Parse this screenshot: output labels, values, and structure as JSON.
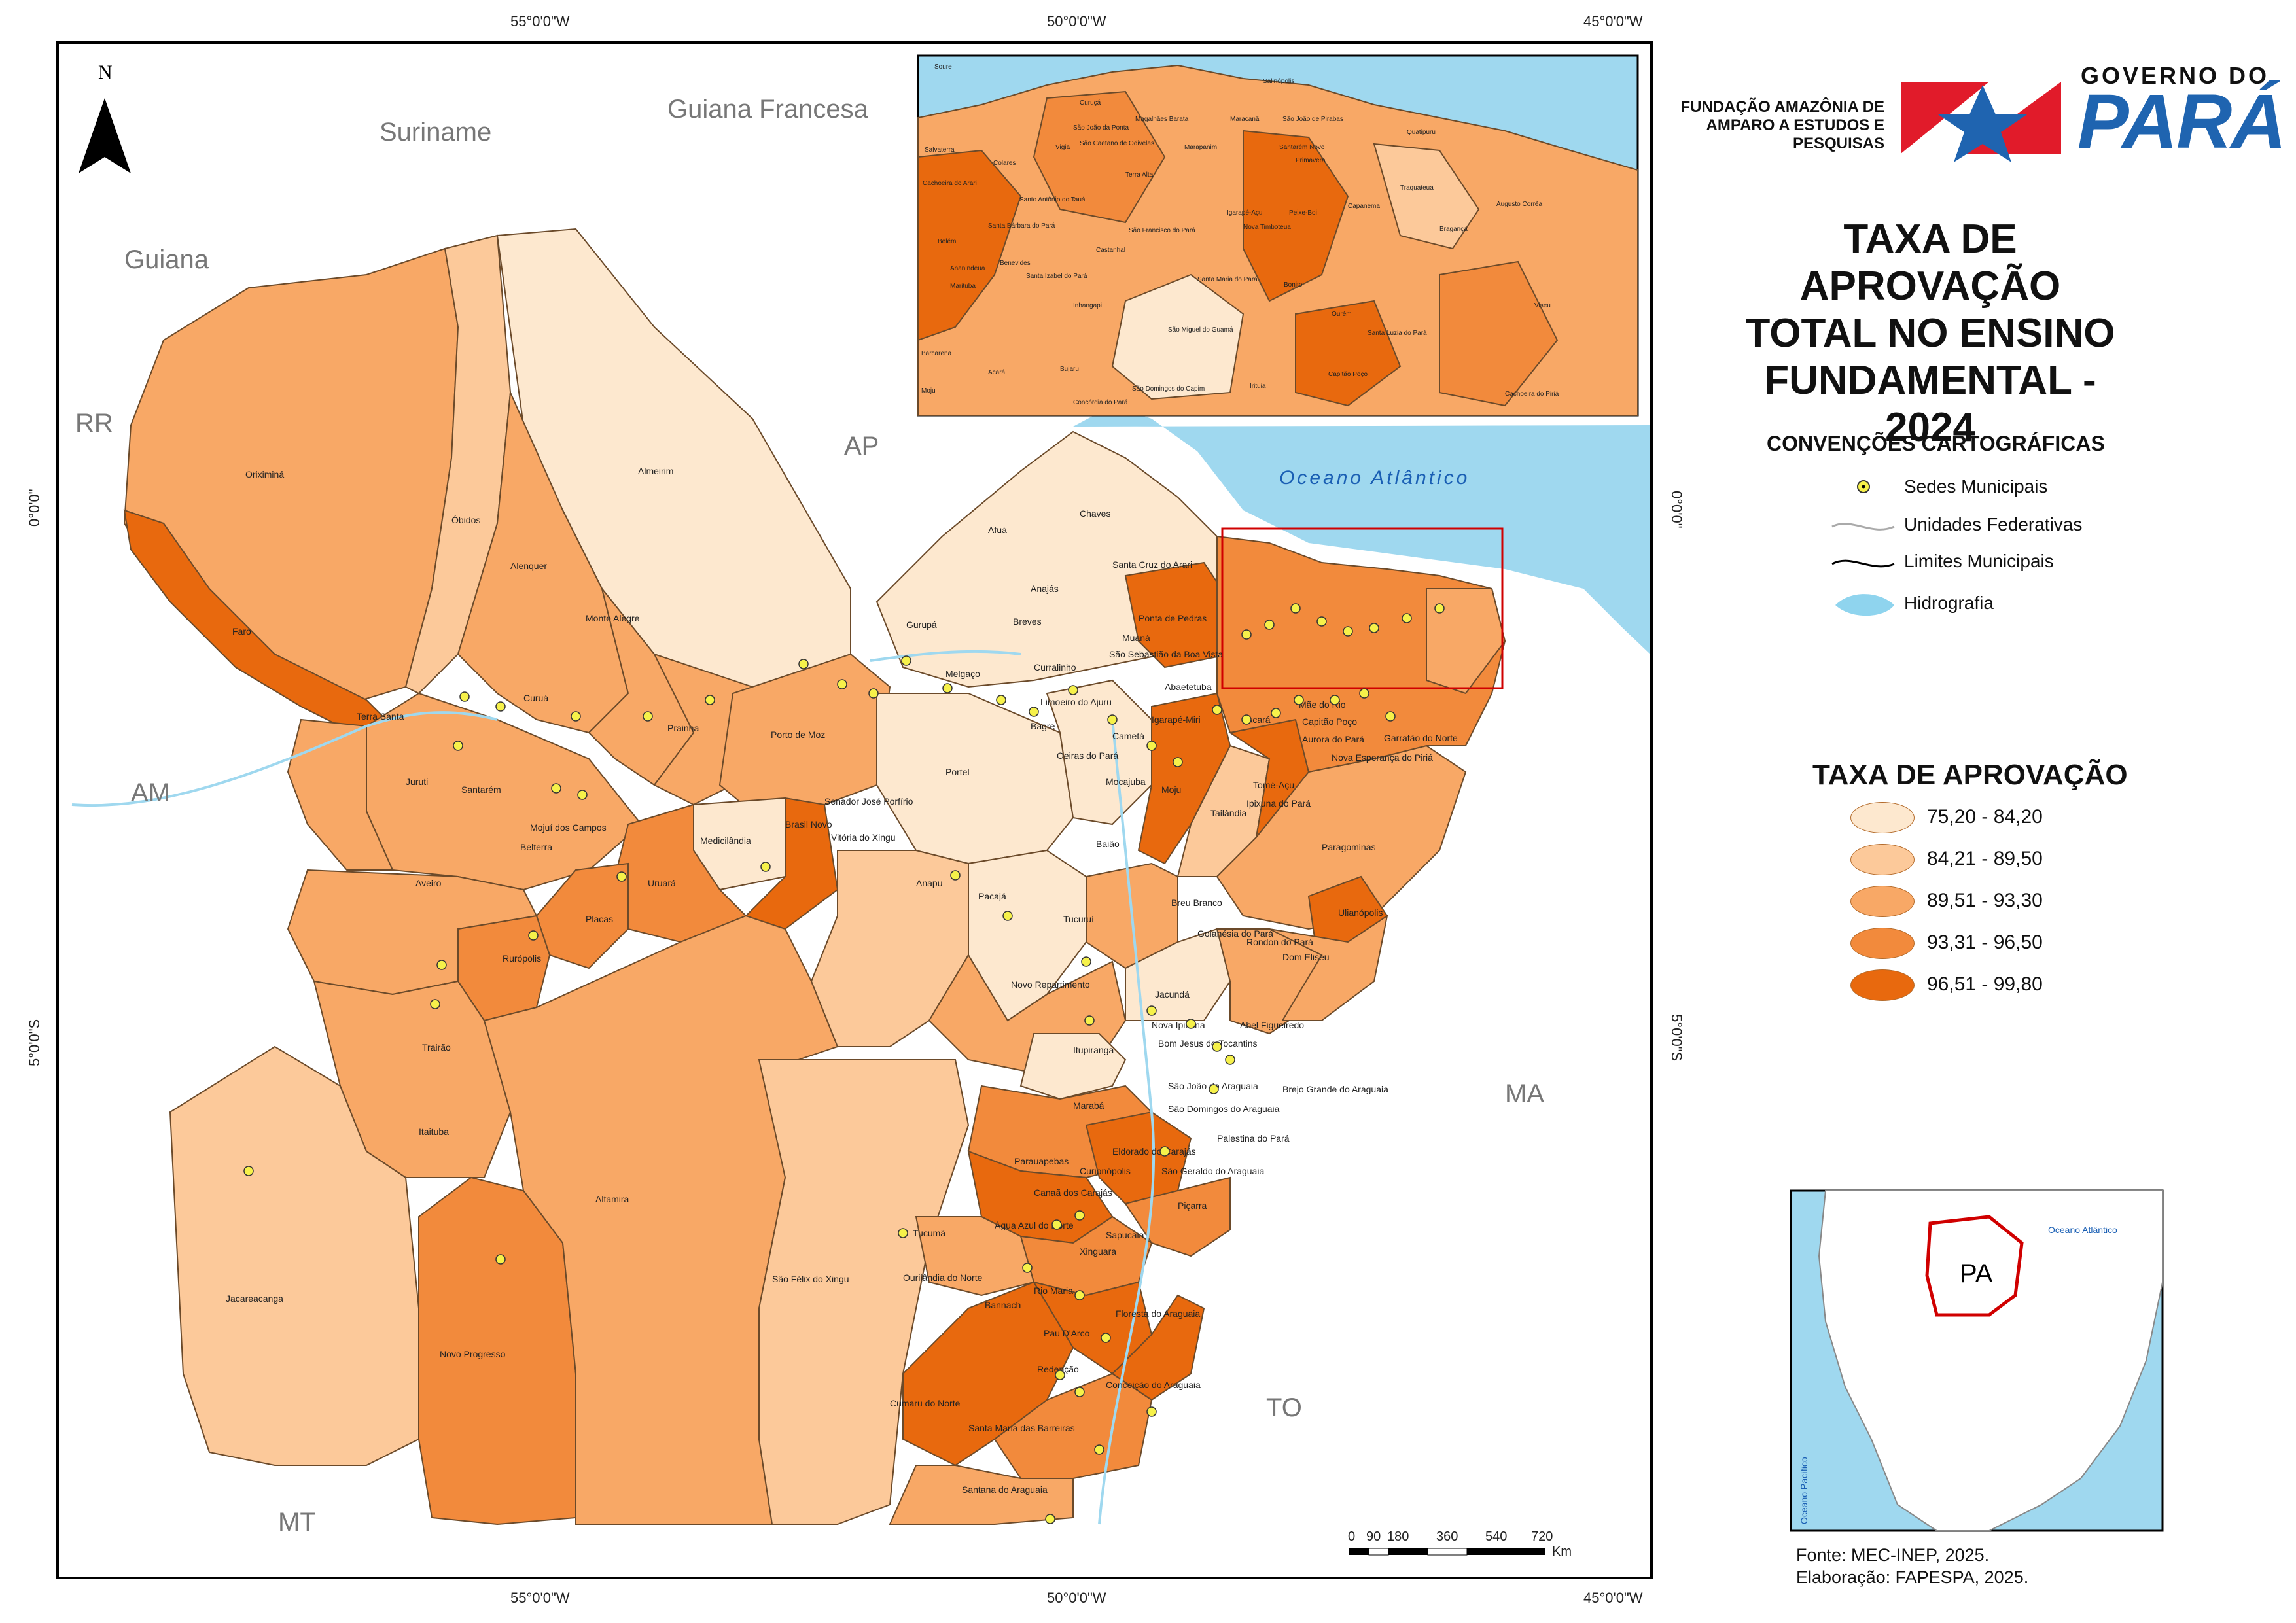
{
  "coords": {
    "top": [
      "55°0'0\"W",
      "50°0'0\"W",
      "45°0'0\"W"
    ],
    "bottom": [
      "55°0'0\"W",
      "50°0'0\"W",
      "45°0'0\"W"
    ],
    "left": [
      "0°0'0\"",
      "5°0'0\"S"
    ],
    "right": [
      "0°0'0\"",
      "5°0'0\"S"
    ]
  },
  "north": "N",
  "countries": [
    "Suriname",
    "Guiana Francesa",
    "Guiana"
  ],
  "states": [
    "RR",
    "AP",
    "AM",
    "MA",
    "TO",
    "MT"
  ],
  "ocean": "Oceano Atlântico",
  "municipalities": [
    "Oriximiná",
    "Óbidos",
    "Almeirim",
    "Alenquer",
    "Monte Alegre",
    "Faro",
    "Terra Santa",
    "Curuá",
    "Prainha",
    "Juruti",
    "Santarém",
    "Belterra",
    "Mojuí dos Campos",
    "Porto de Moz",
    "Medicilândia",
    "Brasil Novo",
    "Vitória do Xingu",
    "Senador José Porfírio",
    "Uruará",
    "Placas",
    "Aveiro",
    "Rurópolis",
    "Trairão",
    "Itaituba",
    "Jacareacanga",
    "Novo Progresso",
    "Altamira",
    "São Félix do Xingu",
    "Anapu",
    "Pacajá",
    "Portel",
    "Afuá",
    "Chaves",
    "Anajás",
    "Breves",
    "Gurupá",
    "Melgaço",
    "Bagre",
    "Curralinho",
    "Oeiras do Pará",
    "Limoeiro do Ajuru",
    "Cametá",
    "Igarapé-Miri",
    "Mocajuba",
    "Baião",
    "Moju",
    "Tailândia",
    "Acará",
    "Tomé-Açu",
    "Ipixuna do Pará",
    "Paragominas",
    "Ulianópolis",
    "Dom Eliseu",
    "Rondon do Pará",
    "Goianésia do Pará",
    "Breu Branco",
    "Tucuruí",
    "Novo Repartimento",
    "Jacundá",
    "Nova Ipixuna",
    "Abel Figueiredo",
    "Bom Jesus do Tocantins",
    "Itupiranga",
    "São João do Araguaia",
    "Brejo Grande do Araguaia",
    "São Domingos do Araguaia",
    "Marabá",
    "Palestina do Pará",
    "Eldorado do Carajás",
    "Parauapebas",
    "Curionópolis",
    "São Geraldo do Araguaia",
    "Canaã dos Carajás",
    "Piçarra",
    "Água Azul do Norte",
    "Tucumã",
    "Sapucaia",
    "Xinguara",
    "Ourilândia do Norte",
    "Rio Maria",
    "Bannach",
    "Floresta do Araguaia",
    "Pau D'Arco",
    "Redenção",
    "Conceição do Araguaia",
    "Cumaru do Norte",
    "Santa Maria das Barreiras",
    "Santana do Araguaia",
    "Santa Cruz do Arari",
    "Ponta de Pedras",
    "Muaná",
    "São Sebastião da Boa Vista",
    "Abaetetuba",
    "Mãe do Rio",
    "Capitão Poço",
    "Aurora do Pará",
    "Garrafão do Norte",
    "Nova Esperança do Piriá"
  ],
  "inset_municipalities": [
    "Soure",
    "Salinópolis",
    "Curuçá",
    "São João da Ponta",
    "Magalhães Barata",
    "Maracanã",
    "São João de Pirabas",
    "Quatipuru",
    "Salvaterra",
    "Colares",
    "Vigia",
    "São Caetano de Odivelas",
    "Marapanim",
    "Santarém Novo",
    "Primavera",
    "Terra Alta",
    "Traquateua",
    "Augusto Corrêa",
    "Cachoeira do Arari",
    "Santo Antônio do Tauá",
    "Igarapé-Açu",
    "Peixe-Boi",
    "Capanema",
    "Bragança",
    "Santa Bárbara do Pará",
    "São Francisco do Pará",
    "Nova Timboteua",
    "Belém",
    "Castanhal",
    "Ananindeua",
    "Benevides",
    "Santa Izabel do Pará",
    "Santa Maria do Pará",
    "Bonito",
    "Viseu",
    "Marituba",
    "Inhangapi",
    "Ourém",
    "Santa Luzia do Pará",
    "São Miguel do Guamá",
    "Barcarena",
    "Bujaru",
    "Capitão Poço",
    "Acará",
    "São Domingos do Capim",
    "Irituia",
    "Cachoeira do Piriá",
    "Moju",
    "Concórdia do Pará"
  ],
  "scale": {
    "ticks": [
      "0",
      "90",
      "180",
      "360",
      "540",
      "720"
    ],
    "unit": "Km"
  },
  "inset_brazil_label": "PA",
  "inset_brazil_ocean": "Oceano Atlântico",
  "inset_brazil_pacific": "Oceano Pacífico",
  "logo": {
    "fapespa": [
      "FUNDAÇÃO AMAZÔNIA DE",
      "AMPARO A ESTUDOS E",
      "PESQUISAS"
    ],
    "gov_line1": "GOVERNO DO",
    "gov_line2": "PARÁ"
  },
  "title": [
    "TAXA DE APROVAÇÃO",
    "TOTAL NO ENSINO",
    "FUNDAMENTAL - 2024"
  ],
  "conventions": {
    "title": "CONVENÇÕES CARTOGRÁFICAS",
    "items": [
      "Sedes Municipais",
      "Unidades Federativas",
      "Limites Municipais",
      "Hidrografia"
    ]
  },
  "rate_legend": {
    "title": "TAXA DE APROVAÇÃO",
    "classes": [
      {
        "label": "75,20 - 84,20",
        "color": "#fde8cf"
      },
      {
        "label": "84,21 - 89,50",
        "color": "#fcc99a"
      },
      {
        "label": "89,51 - 93,30",
        "color": "#f8a866"
      },
      {
        "label": "93,31 - 96,50",
        "color": "#f28a3c"
      },
      {
        "label": "96,51 - 99,80",
        "color": "#e8690e"
      }
    ]
  },
  "source": [
    "Fonte: MEC-INEP, 2025.",
    "Elaboração: FAPESPA, 2025."
  ],
  "colors": {
    "ocean": "#9fd8ef",
    "river": "#9fd8ef",
    "frame": "#000000",
    "highlight": "#d00000"
  }
}
